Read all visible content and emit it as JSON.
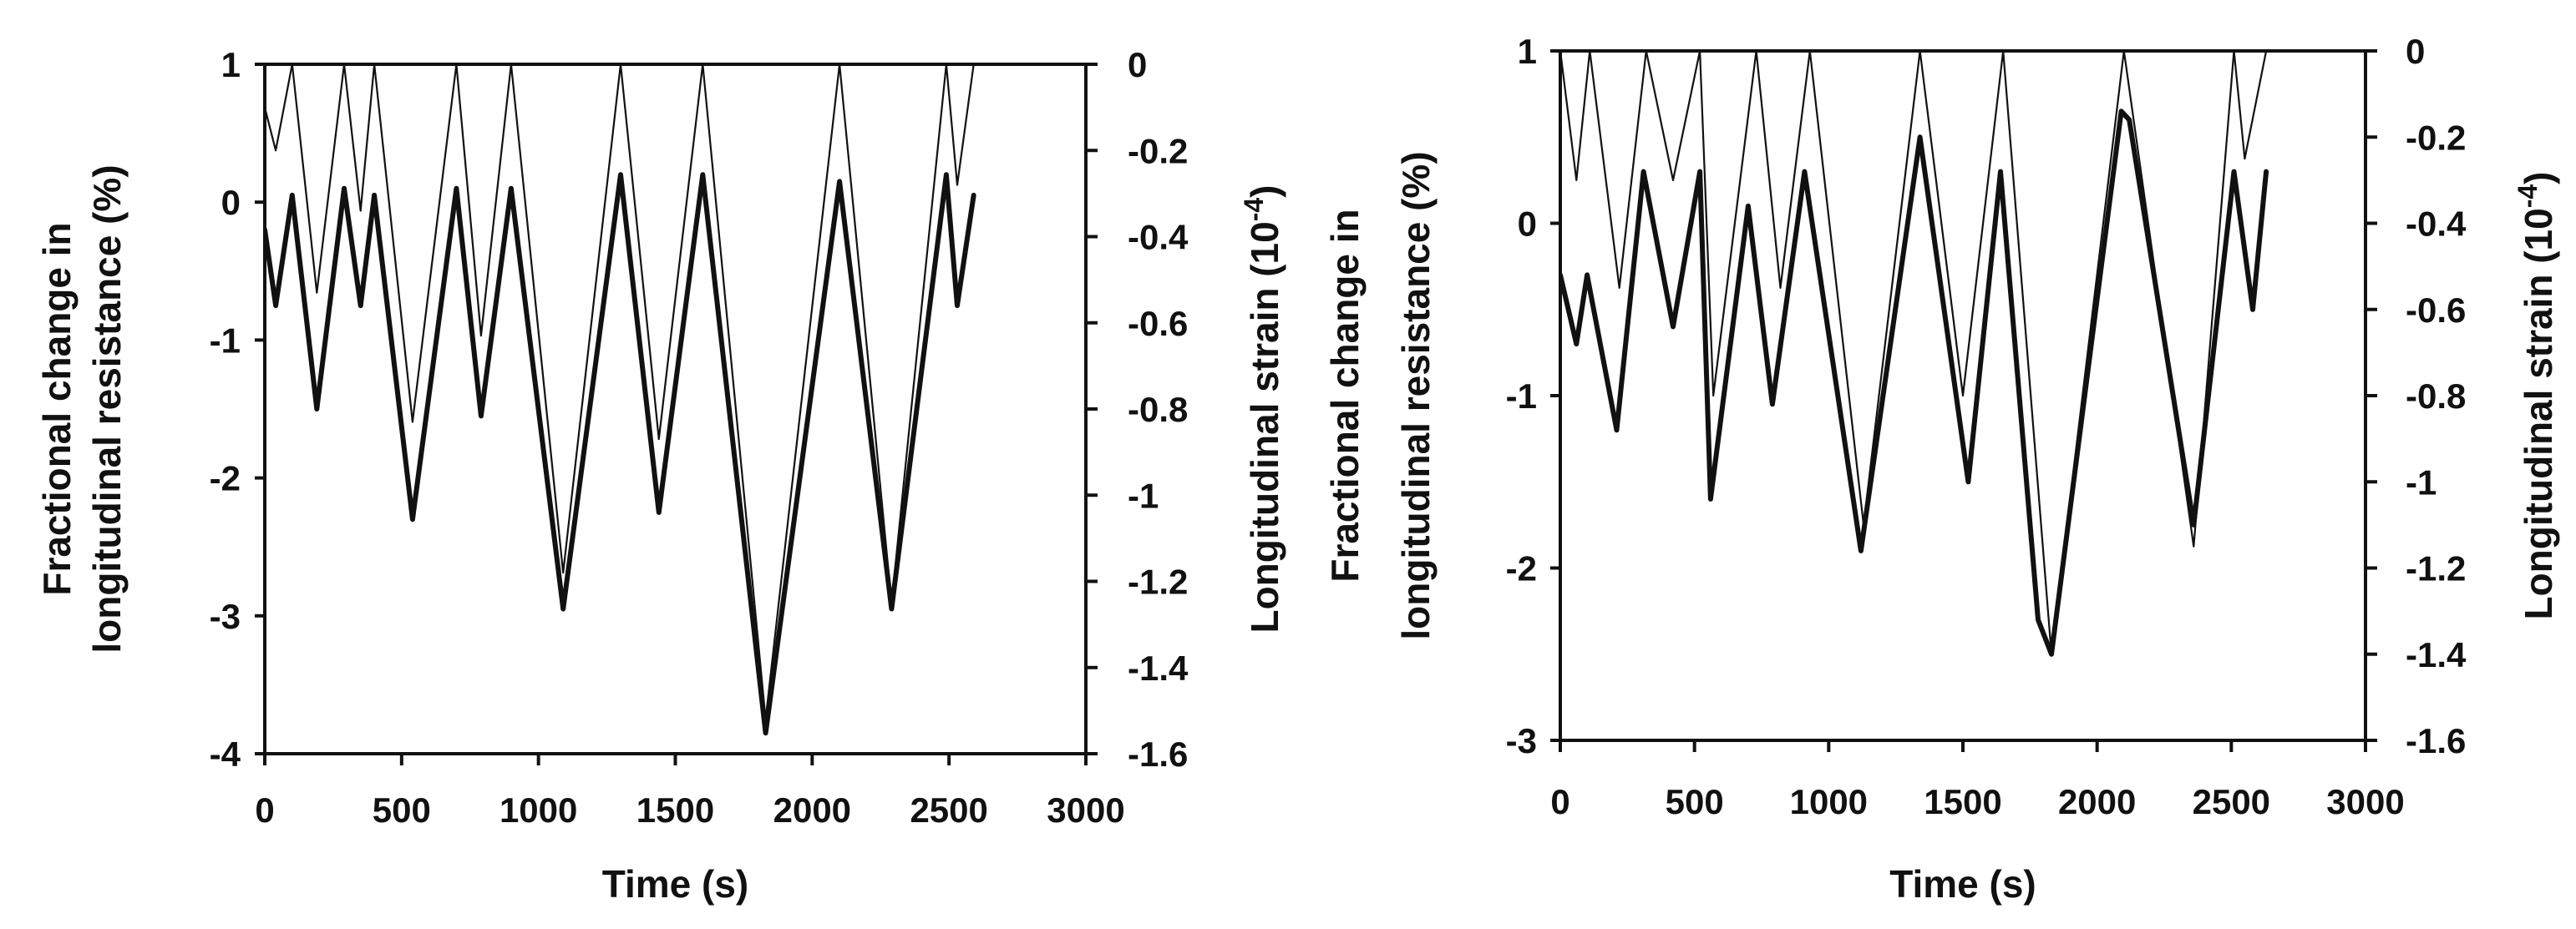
{
  "figure": {
    "background": "#ffffff",
    "ink": "#111111"
  },
  "chart_data": [
    {
      "type": "line",
      "panel": "left",
      "xlabel": "Time (s)",
      "ylabel_lines": [
        "Fractional change in",
        "longitudinal resistance (%)"
      ],
      "y2label_text": "Longitudinal strain (10",
      "y2label_exp": "-4",
      "y2label_close": ")",
      "xlim": [
        0,
        3000
      ],
      "ylim": [
        -4,
        1
      ],
      "y2lim": [
        -1.6,
        0
      ],
      "xticks": [
        0,
        500,
        1000,
        1500,
        2000,
        2500,
        3000
      ],
      "xtick_labels": [
        "0",
        "500",
        "1000",
        "1500",
        "2000",
        "2500",
        "3000"
      ],
      "yticks": [
        1,
        0,
        -1,
        -2,
        -3,
        -4
      ],
      "ytick_labels": [
        "1",
        "0",
        "-1",
        "-2",
        "-3",
        "-4"
      ],
      "y2ticks": [
        0,
        -0.2,
        -0.4,
        -0.6,
        -0.8,
        -1,
        -1.2,
        -1.4,
        -1.6
      ],
      "y2tick_labels": [
        "0",
        "-0.2",
        "-0.4",
        "-0.6",
        "-0.8",
        "-1",
        "-1.2",
        "-1.4",
        "-1.6"
      ],
      "grid": false,
      "series": [
        {
          "name": "Fractional change in longitudinal resistance",
          "axis": "left",
          "weight": "thick",
          "x": [
            0,
            40,
            100,
            190,
            290,
            350,
            400,
            540,
            700,
            790,
            900,
            1090,
            1300,
            1440,
            1600,
            1830,
            2100,
            2290,
            2490,
            2530,
            2590
          ],
          "y": [
            -0.2,
            -0.75,
            0.05,
            -1.5,
            0.1,
            -0.75,
            0.05,
            -2.3,
            0.1,
            -1.55,
            0.1,
            -2.95,
            0.2,
            -2.25,
            0.2,
            -3.85,
            0.15,
            -2.95,
            0.2,
            -0.75,
            0.05
          ]
        },
        {
          "name": "Longitudinal strain",
          "axis": "right",
          "weight": "thin",
          "x": [
            0,
            40,
            100,
            190,
            290,
            350,
            400,
            540,
            700,
            790,
            900,
            1090,
            1300,
            1440,
            1600,
            1830,
            2100,
            2290,
            2490,
            2530,
            2590
          ],
          "y": [
            -0.1,
            -0.2,
            0,
            -0.53,
            0,
            -0.34,
            0,
            -0.83,
            0,
            -0.63,
            0,
            -1.18,
            0,
            -0.87,
            0,
            -1.52,
            0,
            -1.25,
            0,
            -0.28,
            0
          ]
        }
      ]
    },
    {
      "type": "line",
      "panel": "right",
      "xlabel": "Time (s)",
      "ylabel_lines": [
        "Fractional change in",
        "longitudinal resistance (%)"
      ],
      "y2label_text": "Longitudinal strain (10",
      "y2label_exp": "-4",
      "y2label_close": ")",
      "xlim": [
        0,
        3000
      ],
      "ylim": [
        -3,
        1
      ],
      "y2lim": [
        -1.6,
        0
      ],
      "xticks": [
        0,
        500,
        1000,
        1500,
        2000,
        2500,
        3000
      ],
      "xtick_labels": [
        "0",
        "500",
        "1000",
        "1500",
        "2000",
        "2500",
        "3000"
      ],
      "yticks": [
        1,
        0,
        -1,
        -2,
        -3
      ],
      "ytick_labels": [
        "1",
        "0",
        "-1",
        "-2",
        "-3"
      ],
      "y2ticks": [
        0,
        -0.2,
        -0.4,
        -0.6,
        -0.8,
        -1,
        -1.2,
        -1.4,
        -1.6
      ],
      "y2tick_labels": [
        "0",
        "-0.2",
        "-0.4",
        "-0.6",
        "-0.8",
        "-1",
        "-1.2",
        "-1.4",
        "-1.6"
      ],
      "grid": false,
      "series": [
        {
          "name": "Fractional change in longitudinal resistance",
          "axis": "left",
          "weight": "thick",
          "x": [
            0,
            60,
            100,
            210,
            310,
            420,
            520,
            560,
            700,
            790,
            910,
            1120,
            1340,
            1520,
            1640,
            1780,
            1830,
            2090,
            2120,
            2360,
            2510,
            2580,
            2630
          ],
          "y": [
            -0.3,
            -0.7,
            -0.3,
            -1.2,
            0.3,
            -0.6,
            0.3,
            -1.6,
            0.1,
            -1.05,
            0.3,
            -1.9,
            0.5,
            -1.5,
            0.3,
            -2.3,
            -2.5,
            0.65,
            0.6,
            -1.75,
            0.3,
            -0.5,
            0.3
          ]
        },
        {
          "name": "Longitudinal strain",
          "axis": "right",
          "weight": "thin",
          "x": [
            0,
            60,
            110,
            220,
            320,
            420,
            520,
            570,
            730,
            820,
            930,
            1130,
            1340,
            1500,
            1650,
            1830,
            2100,
            2360,
            2510,
            2550,
            2630
          ],
          "y": [
            0,
            -0.3,
            0,
            -0.55,
            0,
            -0.3,
            0,
            -0.8,
            0,
            -0.55,
            0,
            -1.1,
            0,
            -0.8,
            0,
            -1.4,
            0,
            -1.15,
            0,
            -0.25,
            0
          ]
        }
      ]
    }
  ]
}
